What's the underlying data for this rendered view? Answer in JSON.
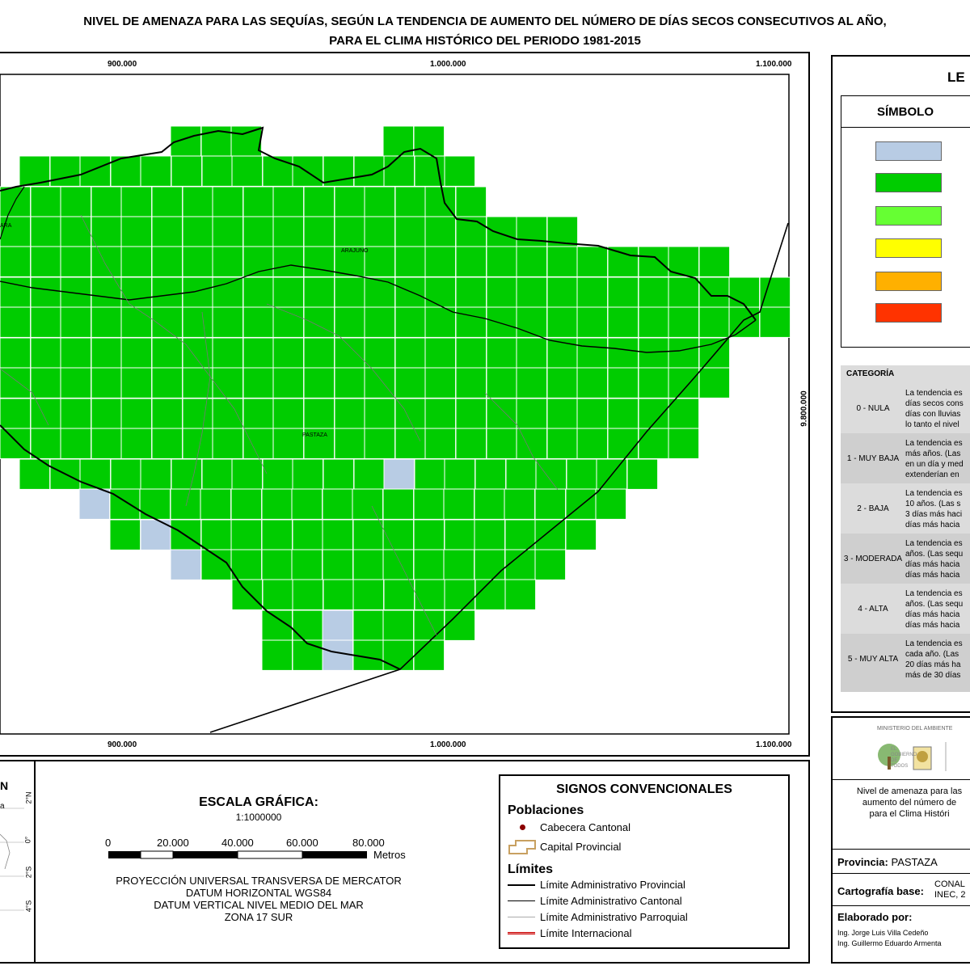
{
  "title_line1": "NIVEL DE AMENAZA PARA LAS SEQUÍAS, SEGÚN LA TENDENCIA DE AUMENTO DEL NÚMERO DE DÍAS SECOS CONSECUTIVOS AL AÑO,",
  "title_line2": "PARA EL CLIMA HISTÓRICO DEL PERIODO 1981-2015",
  "map": {
    "x_ticks": [
      "900.000",
      "1.000.000",
      "1.100.000"
    ],
    "y_tick": "9.800.000",
    "place_arajuno": "ARAJUNO",
    "place_pastaza": "PASTAZA",
    "place_left": "ARA",
    "colors": {
      "green": "#00cc00",
      "lightblue": "#b8cce4",
      "grid_line": "#ffffff"
    }
  },
  "legend": {
    "title": "LE",
    "symbol_header": "SÍMBOLO",
    "swatches": [
      "#b8cce4",
      "#00cc00",
      "#66ff33",
      "#ffff00",
      "#ffb000",
      "#ff3300"
    ],
    "category_header": "CATEGORÍA",
    "categories": [
      {
        "label": "0 - NULA",
        "desc": "La tendencia es\ndías secos cons\ndías con lluvias\nlo tanto el nivel"
      },
      {
        "label": "1 - MUY BAJA",
        "desc": "La tendencia es\nmás años. (Las\nen un día y med\nextenderían en"
      },
      {
        "label": "2 - BAJA",
        "desc": "La tendencia es\n10 años. (Las s\n3 días más haci\ndías más hacia"
      },
      {
        "label": "3 - MODERADA",
        "desc": "La tendencia es\naños. (Las sequ\ndías más hacia\ndías más hacia"
      },
      {
        "label": "4 - ALTA",
        "desc": "La tendencia es\naños. (Las sequ\ndías más hacia\ndías más hacia"
      },
      {
        "label": "5 - MUY ALTA",
        "desc": "La tendencia es\ncada año. (Las\n20 días más ha\nmás de 30 días"
      }
    ]
  },
  "inset": {
    "title": "N",
    "label_a": "a",
    "lat_labels": [
      "2°N",
      "0°",
      "2°S",
      "4°S"
    ]
  },
  "scale": {
    "title": "ESCALA GRÁFICA:",
    "ratio": "1:1000000",
    "ticks": [
      "0",
      "20.000",
      "40.000",
      "60.000",
      "80.000"
    ],
    "unit": "Metros",
    "projection": [
      "PROYECCIÓN UNIVERSAL TRANSVERSA DE MERCATOR",
      "DATUM HORIZONTAL WGS84",
      "DATUM VERTICAL NIVEL MEDIO DEL MAR",
      "ZONA 17 SUR"
    ]
  },
  "signos": {
    "title": "SIGNOS CONVENCIONALES",
    "poblaciones": "Poblaciones",
    "cabecera": "Cabecera Cantonal",
    "capital": "Capital Provincial",
    "limites": "Límites",
    "lim_provincial": "Límite Administrativo Provincial",
    "lim_cantonal": "Límite Administrativo Cantonal",
    "lim_parroquial": "Límite Administrativo Parroquial",
    "lim_internacional": "Límite Internacional"
  },
  "info": {
    "ministerio": "MINISTERIO DEL AMBIENTE",
    "gobierno": "EL GOBIERNO DE TODOS",
    "desc_line1": "Nivel de amenaza para las",
    "desc_line2": "aumento del número de",
    "desc_line3": "para el Clima Históri",
    "provincia_label": "Provincia:",
    "provincia_value": "PASTAZA",
    "cartografia_label": "Cartografía base:",
    "cartografia_value1": "CONAL",
    "cartografia_value2": "INEC, 2",
    "elaborado_label": "Elaborado por:",
    "autor1": "Ing. Jorge Luis Villa Cedeño",
    "autor2": "Ing. Guillermo Eduardo Armenta"
  }
}
